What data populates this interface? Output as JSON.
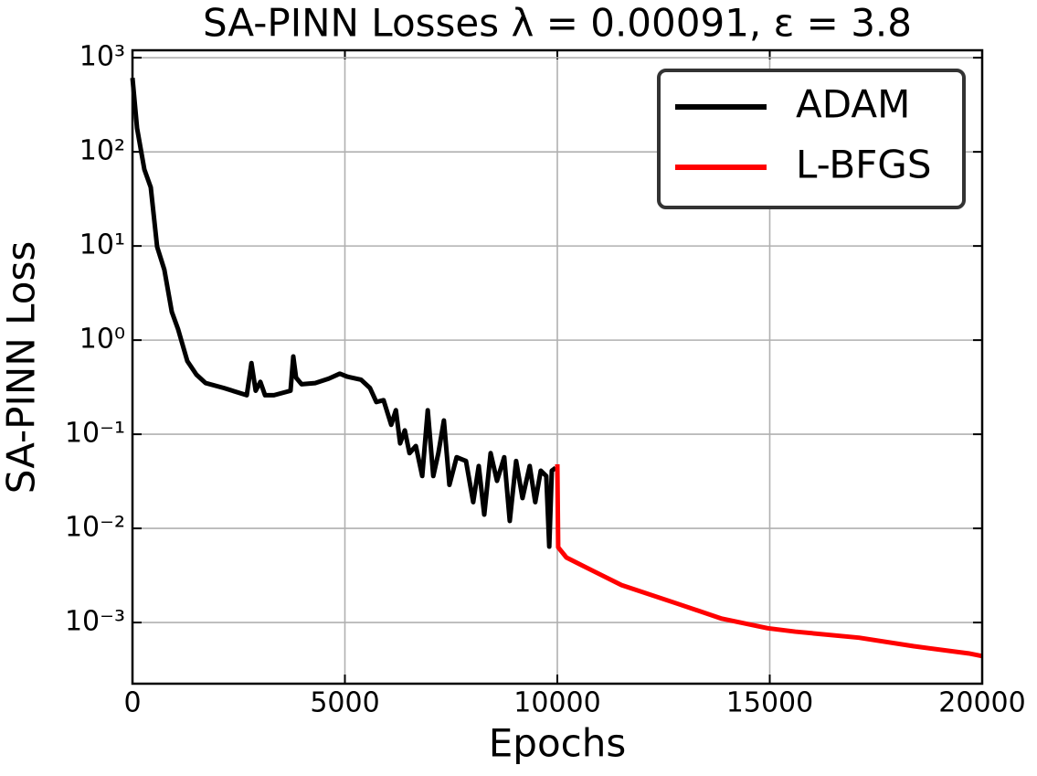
{
  "chart_data": {
    "type": "line",
    "title": "SA-PINN Losses λ = 0.00091, ε = 3.8",
    "x_label": "Epochs",
    "y_label": "SA-PINN Loss",
    "xlim": [
      0,
      20000
    ],
    "xticks": [
      0,
      5000,
      10000,
      15000,
      20000
    ],
    "ylim": [
      0.000224,
      1200
    ],
    "log_y": true,
    "grid": true,
    "legend": "upper right",
    "yticks": [
      {
        "value": 0.001,
        "label": "10⁻³"
      },
      {
        "value": 0.01,
        "label": "10⁻²"
      },
      {
        "value": 0.1,
        "label": "10⁻¹"
      },
      {
        "value": 1,
        "label": "10⁰"
      },
      {
        "value": 10,
        "label": "10¹"
      },
      {
        "value": 100,
        "label": "10²"
      },
      {
        "value": 1000,
        "label": "10³"
      }
    ],
    "series": [
      {
        "name": "ADAM",
        "color": "#000000",
        "x": [
          0,
          108,
          280,
          430,
          580,
          750,
          925,
          1075,
          1290,
          1505,
          1720,
          2150,
          2690,
          2800,
          2900,
          3010,
          3120,
          3330,
          3720,
          3785,
          3850,
          3980,
          4300,
          4620,
          4880,
          5050,
          5380,
          5590,
          5740,
          5910,
          6090,
          6200,
          6300,
          6410,
          6520,
          6670,
          6820,
          6950,
          7080,
          7200,
          7330,
          7460,
          7630,
          7850,
          8020,
          8150,
          8280,
          8430,
          8580,
          8750,
          8880,
          9030,
          9180,
          9350,
          9480,
          9610,
          9740,
          9810,
          9870,
          9960
        ],
        "values": [
          610,
          178,
          65,
          42,
          9.8,
          5.6,
          2.0,
          1.3,
          0.6,
          0.43,
          0.35,
          0.31,
          0.26,
          0.57,
          0.29,
          0.36,
          0.26,
          0.26,
          0.29,
          0.67,
          0.4,
          0.34,
          0.35,
          0.39,
          0.44,
          0.41,
          0.38,
          0.31,
          0.22,
          0.23,
          0.126,
          0.18,
          0.08,
          0.11,
          0.063,
          0.075,
          0.036,
          0.18,
          0.036,
          0.063,
          0.14,
          0.029,
          0.057,
          0.052,
          0.019,
          0.046,
          0.014,
          0.063,
          0.032,
          0.057,
          0.012,
          0.052,
          0.021,
          0.046,
          0.019,
          0.041,
          0.036,
          0.0064,
          0.041,
          0.044
        ]
      },
      {
        "name": "L-BFGS",
        "color": "#ff0000",
        "x": [
          10000,
          10020,
          10215,
          10860,
          11510,
          12800,
          13870,
          14950,
          15600,
          17100,
          18390,
          19680,
          20000
        ],
        "values": [
          0.048,
          0.0063,
          0.0049,
          0.0035,
          0.0025,
          0.0016,
          0.0011,
          0.00087,
          0.0008,
          0.00069,
          0.00056,
          0.00047,
          0.00044
        ]
      }
    ]
  }
}
